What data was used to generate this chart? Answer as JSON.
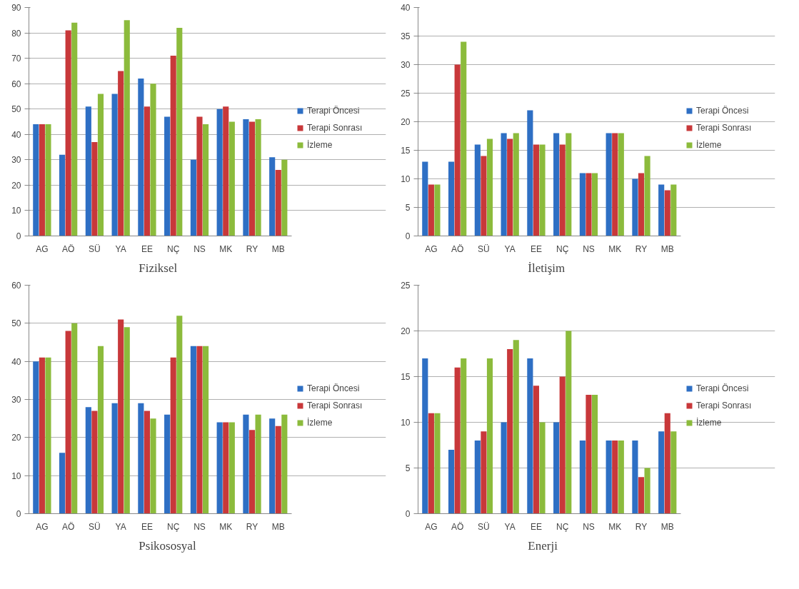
{
  "chart_data": [
    {
      "type": "bar",
      "title": "Fiziksel",
      "categories": [
        "AG",
        "AÖ",
        "SÜ",
        "YA",
        "EE",
        "NÇ",
        "NS",
        "MK",
        "RY",
        "MB"
      ],
      "ylim": [
        0,
        90
      ],
      "yticks": [
        0,
        10,
        20,
        30,
        40,
        50,
        60,
        70,
        80,
        90
      ],
      "grid": "y",
      "legend": "right",
      "series": [
        {
          "name": "Terapi Öncesi",
          "color": "#2e6fc4",
          "values": [
            44,
            32,
            51,
            56,
            62,
            47,
            30,
            50,
            46,
            31
          ]
        },
        {
          "name": "Terapi Sonrası",
          "color": "#c8383a",
          "values": [
            44,
            81,
            37,
            65,
            51,
            71,
            47,
            51,
            45,
            26
          ]
        },
        {
          "name": "İzleme",
          "color": "#8cbb3c",
          "values": [
            44,
            84,
            56,
            85,
            60,
            82,
            44,
            45,
            46,
            30
          ]
        }
      ]
    },
    {
      "type": "bar",
      "title": "İletişim",
      "categories": [
        "AG",
        "AÖ",
        "SÜ",
        "YA",
        "EE",
        "NÇ",
        "NS",
        "MK",
        "RY",
        "MB"
      ],
      "ylim": [
        0,
        40
      ],
      "yticks": [
        0,
        5,
        10,
        15,
        20,
        25,
        30,
        35,
        40
      ],
      "grid": "y",
      "legend": "right",
      "series": [
        {
          "name": "Terapi Öncesi",
          "color": "#2e6fc4",
          "values": [
            13,
            13,
            16,
            18,
            22,
            18,
            11,
            18,
            10,
            9
          ]
        },
        {
          "name": "Terapi Sonrası",
          "color": "#c8383a",
          "values": [
            9,
            30,
            14,
            17,
            16,
            16,
            11,
            18,
            11,
            8
          ]
        },
        {
          "name": "İzleme",
          "color": "#8cbb3c",
          "values": [
            9,
            34,
            17,
            18,
            16,
            18,
            11,
            18,
            14,
            9
          ]
        }
      ]
    },
    {
      "type": "bar",
      "title": "Psikososyal",
      "categories": [
        "AG",
        "AÖ",
        "SÜ",
        "YA",
        "EE",
        "NÇ",
        "NS",
        "MK",
        "RY",
        "MB"
      ],
      "ylim": [
        0,
        60
      ],
      "yticks": [
        0,
        10,
        20,
        30,
        40,
        50,
        60
      ],
      "grid": "y",
      "legend": "right",
      "series": [
        {
          "name": "Terapi Öncesi",
          "color": "#2e6fc4",
          "values": [
            40,
            16,
            28,
            29,
            29,
            26,
            44,
            24,
            26,
            25
          ]
        },
        {
          "name": "Terapi Sonrası",
          "color": "#c8383a",
          "values": [
            41,
            48,
            27,
            51,
            27,
            41,
            44,
            24,
            22,
            23
          ]
        },
        {
          "name": "İzleme",
          "color": "#8cbb3c",
          "values": [
            41,
            50,
            44,
            49,
            25,
            52,
            44,
            24,
            26,
            26
          ]
        }
      ]
    },
    {
      "type": "bar",
      "title": "Enerji",
      "categories": [
        "AG",
        "AÖ",
        "SÜ",
        "YA",
        "EE",
        "NÇ",
        "NS",
        "MK",
        "RY",
        "MB"
      ],
      "ylim": [
        0,
        25
      ],
      "yticks": [
        0,
        5,
        10,
        15,
        20,
        25
      ],
      "grid": "y",
      "legend": "right",
      "series": [
        {
          "name": "Terapi Öncesi",
          "color": "#2e6fc4",
          "values": [
            17,
            7,
            8,
            10,
            17,
            10,
            8,
            8,
            8,
            9
          ]
        },
        {
          "name": "Terapi Sonrası",
          "color": "#c8383a",
          "values": [
            11,
            16,
            9,
            18,
            14,
            15,
            13,
            8,
            4,
            11
          ]
        },
        {
          "name": "İzleme",
          "color": "#8cbb3c",
          "values": [
            11,
            17,
            17,
            19,
            10,
            20,
            13,
            8,
            5,
            9
          ]
        }
      ]
    }
  ]
}
